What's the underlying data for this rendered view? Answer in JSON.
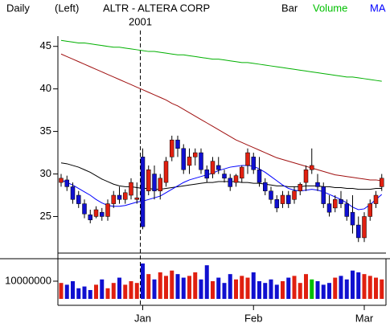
{
  "chart_data": {
    "type": "candlestick",
    "period": "Daily",
    "scale": "(Left)",
    "title": "ALTR - ALTERA CORP",
    "year": "2001",
    "legend": [
      {
        "label": "Bar",
        "color": "#000000"
      },
      {
        "label": "Volume",
        "color": "#00c000"
      },
      {
        "label": "MA",
        "color": "#0000ff"
      }
    ],
    "categories": [
      null,
      null,
      null,
      null,
      null,
      null,
      null,
      null,
      null,
      null,
      null,
      null,
      null,
      null,
      "Jan",
      null,
      null,
      null,
      null,
      null,
      null,
      null,
      null,
      null,
      null,
      null,
      null,
      null,
      null,
      null,
      null,
      null,
      null,
      "Feb",
      null,
      null,
      null,
      null,
      null,
      null,
      null,
      null,
      null,
      null,
      null,
      null,
      null,
      null,
      null,
      null,
      null,
      null,
      "Mar",
      null,
      null,
      null
    ],
    "ylim": [
      20.7,
      46.2
    ],
    "yticks": [
      25,
      30,
      35,
      40,
      45
    ],
    "up_color": "#e02010",
    "down_color": "#1010d0",
    "open": [
      29,
      29.3,
      28.5,
      27.5,
      26.5,
      25.2,
      25,
      25.5,
      25,
      26.5,
      27.5,
      27,
      27.5,
      27,
      32,
      28,
      30,
      28,
      29,
      32,
      34,
      33,
      31,
      32,
      32.5,
      30.5,
      30,
      31,
      30,
      29.5,
      29,
      29.5,
      31,
      32,
      30.5,
      29,
      28,
      27,
      26.5,
      27.5,
      27,
      28,
      29,
      30.5,
      29,
      28.5,
      26.5,
      26,
      27,
      26.5,
      25.5,
      24,
      22.5,
      25,
      26.5,
      28.5
    ],
    "high": [
      30,
      29.8,
      29,
      28,
      27,
      25.8,
      26.2,
      26,
      27,
      28,
      28.5,
      28.2,
      29.5,
      29,
      33,
      31,
      31,
      30,
      32,
      34.5,
      34.5,
      33.5,
      33,
      33,
      33,
      31,
      32,
      32,
      30.5,
      30,
      30,
      31,
      33,
      32.5,
      32,
      29.5,
      28.5,
      27.5,
      28,
      28,
      28.5,
      29,
      31,
      33,
      30,
      29,
      27.5,
      27.5,
      28,
      27,
      27.5,
      25,
      25.5,
      27,
      28,
      30
    ],
    "low": [
      28.5,
      28,
      26.5,
      26,
      24.8,
      24.2,
      24.8,
      24.5,
      24.5,
      26,
      26.5,
      26.5,
      27,
      26.5,
      23.5,
      27.5,
      27,
      27,
      28.5,
      31.5,
      32,
      30,
      30,
      31,
      30,
      29,
      29.5,
      30,
      29,
      28,
      28.5,
      29,
      30,
      30,
      28.5,
      27.5,
      26.5,
      25.5,
      26,
      26,
      26.5,
      27.5,
      28,
      30,
      28,
      26,
      25,
      25.5,
      26,
      24.5,
      23,
      22,
      22,
      24.5,
      26,
      28
    ],
    "close": [
      29.5,
      28.5,
      27,
      26.5,
      25.3,
      24.6,
      25.8,
      25,
      26.5,
      27.5,
      27,
      27.8,
      29,
      27.2,
      23.8,
      30.5,
      28,
      29.5,
      31.5,
      34,
      33,
      30.5,
      32,
      32.5,
      30.5,
      29.5,
      31.5,
      30.5,
      29.5,
      28.5,
      29.8,
      30.8,
      32.5,
      30.5,
      29,
      28,
      27,
      26,
      27.5,
      26.5,
      28,
      28.8,
      30.5,
      31,
      28.5,
      26.5,
      25.5,
      27,
      26.5,
      25,
      24,
      22.5,
      25,
      26.5,
      27.5,
      29.5
    ],
    "ma_series": [
      {
        "color": "#00b000",
        "values": [
          45.7,
          45.6,
          45.5,
          45.4,
          45.4,
          45.3,
          45.2,
          45.1,
          45.0,
          44.9,
          44.9,
          44.8,
          44.7,
          44.6,
          44.5,
          44.4,
          44.4,
          44.3,
          44.2,
          44.1,
          44.0,
          44.0,
          43.9,
          43.8,
          43.7,
          43.6,
          43.5,
          43.5,
          43.4,
          43.3,
          43.2,
          43.1,
          43.1,
          43.0,
          42.9,
          42.8,
          42.7,
          42.6,
          42.5,
          42.4,
          42.3,
          42.2,
          42.1,
          42.0,
          41.9,
          41.8,
          41.7,
          41.6,
          41.5,
          41.4,
          41.4,
          41.3,
          41.2,
          41.1,
          41.0,
          40.9
        ]
      },
      {
        "color": "#a01010",
        "values": [
          44.1,
          43.8,
          43.5,
          43.2,
          42.9,
          42.6,
          42.3,
          42.0,
          41.7,
          41.4,
          41.1,
          40.8,
          40.5,
          40.2,
          39.9,
          39.6,
          39.3,
          39.0,
          38.7,
          38.3,
          38.0,
          37.6,
          37.2,
          36.8,
          36.4,
          36.0,
          35.6,
          35.2,
          34.8,
          34.4,
          34.0,
          33.7,
          33.4,
          33.1,
          32.8,
          32.5,
          32.2,
          31.9,
          31.7,
          31.5,
          31.3,
          31.1,
          30.9,
          30.7,
          30.5,
          30.3,
          30.1,
          29.9,
          29.8,
          29.7,
          29.6,
          29.5,
          29.4,
          29.3,
          29.3,
          29.2
        ]
      },
      {
        "color": "#000000",
        "values": [
          31.3,
          31.2,
          31.0,
          30.8,
          30.5,
          30.2,
          29.8,
          29.4,
          29.1,
          28.8,
          28.6,
          28.5,
          28.5,
          28.4,
          28.3,
          28.3,
          28.2,
          28.2,
          28.3,
          28.4,
          28.5,
          28.6,
          28.7,
          28.8,
          28.9,
          29.0,
          29.0,
          29.1,
          29.1,
          29.1,
          29.1,
          29.0,
          29.0,
          28.9,
          28.9,
          28.8,
          28.7,
          28.6,
          28.6,
          28.5,
          28.5,
          28.5,
          28.6,
          28.6,
          28.6,
          28.5,
          28.5,
          28.4,
          28.4,
          28.3,
          28.3,
          28.2,
          28.2,
          28.2,
          28.3,
          28.3
        ]
      },
      {
        "color": "#0000ff",
        "values": [
          29.3,
          29.0,
          28.7,
          28.3,
          27.9,
          27.5,
          27.0,
          26.6,
          26.3,
          26.2,
          26.2,
          26.3,
          26.5,
          26.7,
          26.8,
          27.0,
          27.2,
          27.4,
          27.8,
          28.2,
          28.6,
          29.0,
          29.3,
          29.5,
          29.7,
          29.9,
          30.1,
          30.4,
          30.6,
          30.8,
          30.9,
          31.0,
          31.0,
          30.9,
          30.6,
          30.2,
          29.7,
          29.2,
          28.7,
          28.3,
          28.1,
          28.0,
          28.1,
          28.2,
          28.1,
          27.9,
          27.6,
          27.3,
          27.0,
          26.6,
          26.1,
          25.8,
          25.9,
          26.4,
          27.0,
          27.6
        ]
      }
    ],
    "volume": {
      "ylim": [
        0,
        22700000
      ],
      "yticks": [
        10000000
      ],
      "values": [
        9000000,
        8000000,
        10000000,
        6000000,
        7000000,
        5000000,
        8000000,
        11000000,
        6000000,
        9000000,
        12000000,
        8000000,
        10000000,
        9000000,
        20000000,
        14000000,
        11000000,
        15000000,
        13000000,
        16000000,
        14000000,
        12000000,
        13000000,
        15000000,
        11000000,
        19000000,
        10000000,
        12000000,
        9000000,
        14000000,
        11000000,
        13000000,
        12000000,
        15000000,
        10000000,
        9000000,
        11000000,
        8000000,
        10000000,
        12000000,
        13000000,
        9000000,
        14000000,
        11000000,
        10000000,
        8000000,
        9000000,
        12000000,
        13000000,
        11000000,
        16000000,
        15000000,
        14000000,
        13000000,
        12000000,
        11000000
      ],
      "colors": [
        "#e02010",
        "#1010d0",
        "#1010d0",
        "#1010d0",
        "#1010d0",
        "#1010d0",
        "#e02010",
        "#1010d0",
        "#e02010",
        "#e02010",
        "#1010d0",
        "#e02010",
        "#e02010",
        "#e02010",
        "#1010d0",
        "#e02010",
        "#1010d0",
        "#e02010",
        "#e02010",
        "#e02010",
        "#1010d0",
        "#1010d0",
        "#e02010",
        "#e02010",
        "#1010d0",
        "#1010d0",
        "#e02010",
        "#1010d0",
        "#1010d0",
        "#1010d0",
        "#e02010",
        "#e02010",
        "#e02010",
        "#1010d0",
        "#1010d0",
        "#1010d0",
        "#1010d0",
        "#1010d0",
        "#e02010",
        "#1010d0",
        "#e02010",
        "#e02010",
        "#e02010",
        "#00c000",
        "#1010d0",
        "#1010d0",
        "#1010d0",
        "#e02010",
        "#1010d0",
        "#1010d0",
        "#1010d0",
        "#1010d0",
        "#e02010",
        "#e02010",
        "#e02010",
        "#e02010"
      ]
    }
  }
}
